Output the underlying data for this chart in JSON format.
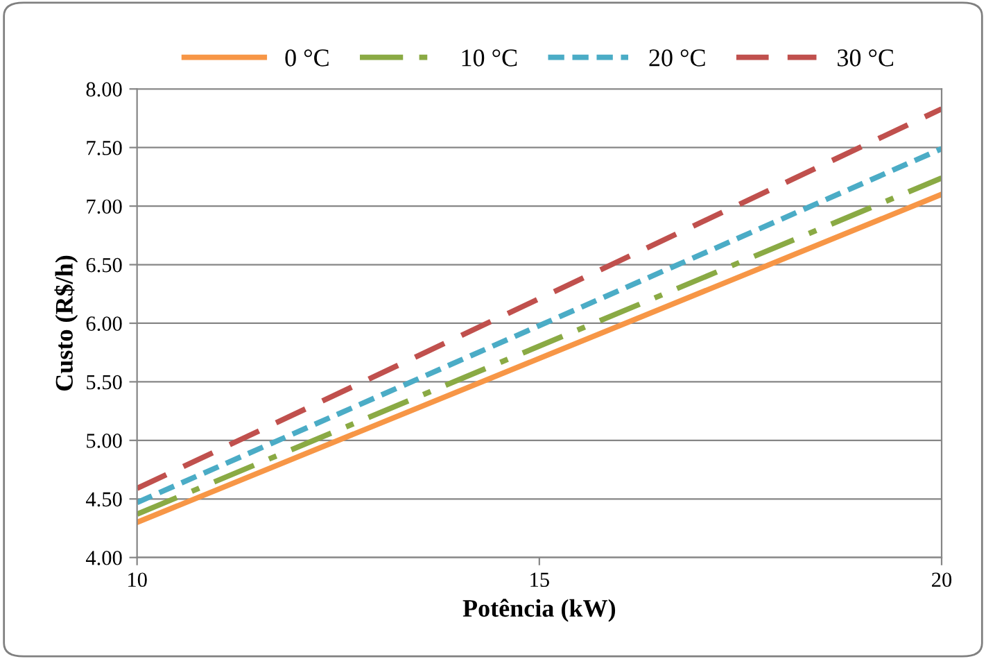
{
  "chart_data": {
    "type": "line",
    "xlabel": "Potência (kW)",
    "ylabel": "Custo (R$/h)",
    "x": [
      10,
      20
    ],
    "series": [
      {
        "name": "0 °C",
        "color": "#f79646",
        "values": [
          4.3,
          7.1
        ],
        "line_style": "solid"
      },
      {
        "name": "10 °C",
        "color": "#8aaa44",
        "values": [
          4.37,
          7.24
        ],
        "line_style": "dashdot"
      },
      {
        "name": "20 °C",
        "color": "#4bacc6",
        "values": [
          4.47,
          7.49
        ],
        "line_style": "dotted"
      },
      {
        "name": "30 °C",
        "color": "#c0504d",
        "values": [
          4.59,
          7.83
        ],
        "line_style": "dashed"
      }
    ],
    "xlim": [
      10,
      20
    ],
    "xticks": [
      10,
      15,
      20
    ],
    "ylim": [
      4.0,
      8.0
    ],
    "yticks": [
      {
        "value": 4.0,
        "label": "4.00"
      },
      {
        "value": 4.5,
        "label": "4.50"
      },
      {
        "value": 5.0,
        "label": "5.00"
      },
      {
        "value": 5.5,
        "label": "5.50"
      },
      {
        "value": 6.0,
        "label": "6.00"
      },
      {
        "value": 6.5,
        "label": "6.50"
      },
      {
        "value": 7.0,
        "label": "7.00"
      },
      {
        "value": 7.5,
        "label": "7.50"
      },
      {
        "value": 8.0,
        "label": "8.00"
      }
    ],
    "grid": "y",
    "legend": "top",
    "marker": "none"
  }
}
